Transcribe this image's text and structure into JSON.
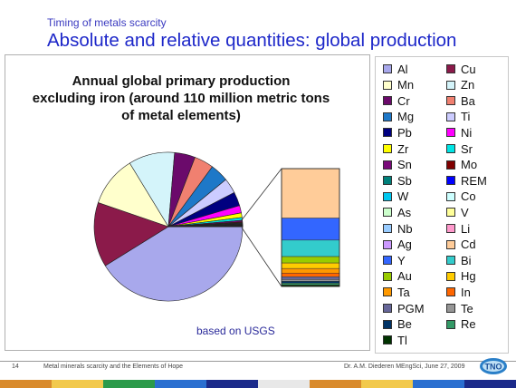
{
  "slide": {
    "kicker": "Timing of metals scarcity",
    "title": "Absolute and relative quantities: global production"
  },
  "chart_title_lines": [
    "Annual global primary production",
    "excluding iron (around 110 million metric tons",
    "of metal elements)"
  ],
  "source_note": "based on USGS",
  "footer": {
    "page": "14",
    "left": "Metal minerals scarcity and the Elements of Hope",
    "right": "Dr. A.M. Diederen MEngSci, June 27, 2009"
  },
  "logo": {
    "name": "tno-logo",
    "text": "TNO"
  },
  "colors": {
    "title": "#1d27c9",
    "kicker": "#3a3ac0",
    "source_note": "#2a2a9a",
    "strip": [
      "#d98a2b",
      "#f2c94c",
      "#2b9a4a",
      "#2a6fd0",
      "#1b2a8a",
      "#e8e8e8",
      "#d98a2b",
      "#f2c94c",
      "#2a6fd0",
      "#1b2a8a"
    ]
  },
  "chart_data": {
    "type": "pie",
    "title": "Annual global primary production excluding iron (around 110 million metric tons of metal elements)",
    "note": "based on USGS",
    "legend_position": "right",
    "detail": "the smallest slices are expanded in a stacked bar to the right of the pie",
    "series": [
      {
        "name": "Al",
        "color": "#a8a8ec",
        "value": 41.0
      },
      {
        "name": "Cu",
        "color": "#8b1a4a",
        "value": 14.0
      },
      {
        "name": "Mn",
        "color": "#ffffcc",
        "value": 11.0
      },
      {
        "name": "Zn",
        "color": "#d4f4fa",
        "value": 10.0
      },
      {
        "name": "Cr",
        "color": "#6b0a6b",
        "value": 4.5
      },
      {
        "name": "Ba",
        "color": "#f08070",
        "value": 4.2
      },
      {
        "name": "Mg",
        "color": "#1e78c8",
        "value": 4.0
      },
      {
        "name": "Ti",
        "color": "#ccccff",
        "value": 3.3
      },
      {
        "name": "Pb",
        "color": "#000080",
        "value": 3.0
      },
      {
        "name": "Ni",
        "color": "#ff00ff",
        "value": 1.6
      },
      {
        "name": "Zr",
        "color": "#ffff00",
        "value": 1.0
      },
      {
        "name": "Sr",
        "color": "#00e5e5",
        "value": 0.6
      },
      {
        "name": "Sn",
        "color": "#7a0a7a",
        "value": 0.35
      },
      {
        "name": "Mo",
        "color": "#800000",
        "value": 0.2
      },
      {
        "name": "Sb",
        "color": "#00807a",
        "value": 0.15
      },
      {
        "name": "REM",
        "color": "#0000ff",
        "value": 0.12
      },
      {
        "name": "W",
        "color": "#00c8f0",
        "value": 0.1
      },
      {
        "name": "Co",
        "color": "#ccffff",
        "value": 0.08
      },
      {
        "name": "As",
        "color": "#ccffcc",
        "value": 0.06
      },
      {
        "name": "V",
        "color": "#ffff99",
        "value": 0.06
      },
      {
        "name": "Nb",
        "color": "#99ccff",
        "value": 0.06
      },
      {
        "name": "Li",
        "color": "#ff99cc",
        "value": 0.03
      },
      {
        "name": "Ag",
        "color": "#cc99ff",
        "value": 0.02
      },
      {
        "name": "Cd",
        "color": "#ffcc99",
        "value": 0.02
      },
      {
        "name": "Y",
        "color": "#3366ff",
        "value": 0.01
      },
      {
        "name": "Bi",
        "color": "#33cccc",
        "value": 0.01
      },
      {
        "name": "Au",
        "color": "#99cc00",
        "value": 0.01
      },
      {
        "name": "Hg",
        "color": "#ffcc00",
        "value": 0.01
      },
      {
        "name": "Ta",
        "color": "#ff9900",
        "value": 0.01
      },
      {
        "name": "In",
        "color": "#ff6600",
        "value": 0.01
      },
      {
        "name": "PGM",
        "color": "#666699",
        "value": 0.01
      },
      {
        "name": "Te",
        "color": "#969696",
        "value": 0.01
      },
      {
        "name": "Be",
        "color": "#003366",
        "value": 0.01
      },
      {
        "name": "Re",
        "color": "#339966",
        "value": 0.01
      },
      {
        "name": "Tl",
        "color": "#003300",
        "value": 0.01
      }
    ],
    "detail_bar_order": [
      "Cd",
      "Y",
      "Bi",
      "Au",
      "Hg",
      "Ta",
      "In",
      "PGM",
      "Te",
      "Be",
      "Re",
      "Tl"
    ],
    "detail_bar_values": [
      27,
      12,
      9,
      3.5,
      3,
      2.5,
      2,
      1.5,
      1,
      1,
      1,
      0.8
    ]
  }
}
